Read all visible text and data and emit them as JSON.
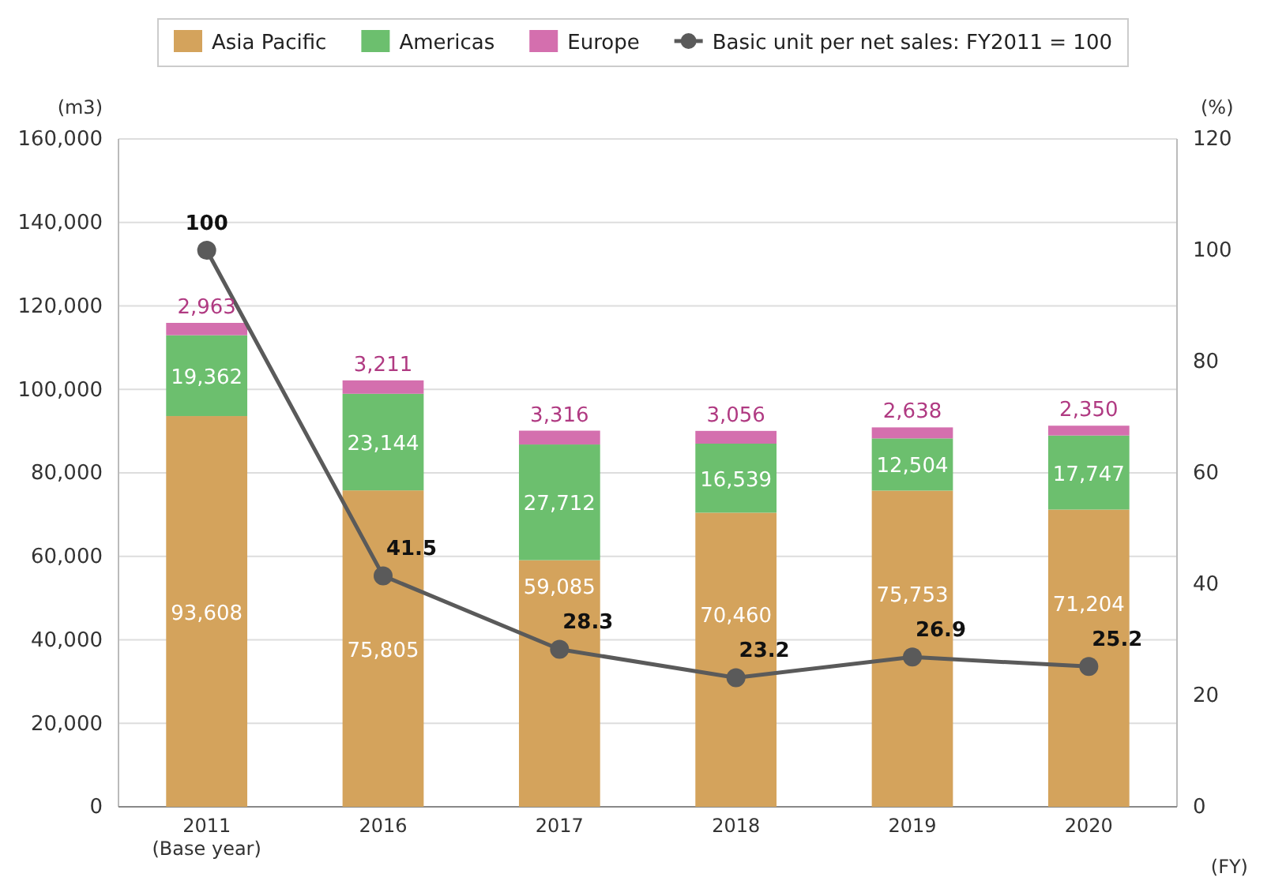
{
  "chart_data": {
    "type": "bar",
    "stacked": true,
    "categories": [
      "2011\n(Base year)",
      "2016",
      "2017",
      "2018",
      "2019",
      "2020"
    ],
    "series": [
      {
        "name": "Asia Pacific",
        "color": "#d4a35c",
        "values": [
          93608,
          75805,
          59085,
          70460,
          75753,
          71204
        ],
        "value_labels": [
          "93,608",
          "75,805",
          "59,085",
          "70,460",
          "75,753",
          "71,204"
        ]
      },
      {
        "name": "Americas",
        "color": "#6cbf6e",
        "values": [
          19362,
          23144,
          27712,
          16539,
          12504,
          17747
        ],
        "value_labels": [
          "19,362",
          "23,144",
          "27,712",
          "16,539",
          "12,504",
          "17,747"
        ]
      },
      {
        "name": "Europe",
        "color": "#d46fae",
        "values": [
          2963,
          3211,
          3316,
          3056,
          2638,
          2350
        ],
        "value_labels": [
          "2,963",
          "3,211",
          "3,316",
          "3,056",
          "2,638",
          "2,350"
        ]
      },
      {
        "name": "Basic unit per net sales: FY2011 = 100",
        "type": "line",
        "axis": "y2",
        "color": "#5a5a5a",
        "values": [
          100,
          41.5,
          28.3,
          23.2,
          26.9,
          25.2
        ]
      }
    ],
    "ylabel": "(m3)",
    "y2label": "(%)",
    "xlabel": "(FY)",
    "ylim": [
      0,
      160000
    ],
    "yticks": [
      {
        "value": 0,
        "label": "0"
      },
      {
        "value": 20000,
        "label": "20,000"
      },
      {
        "value": 40000,
        "label": "40,000"
      },
      {
        "value": 60000,
        "label": "60,000"
      },
      {
        "value": 80000,
        "label": "80,000"
      },
      {
        "value": 100000,
        "label": "100,000"
      },
      {
        "value": 120000,
        "label": "120,000"
      },
      {
        "value": 140000,
        "label": "140,000"
      },
      {
        "value": 160000,
        "label": "160,000"
      }
    ],
    "y2lim": [
      0,
      120
    ],
    "y2ticks": [
      0,
      20,
      40,
      60,
      80,
      100,
      120
    ],
    "grid": "y",
    "legend": "top",
    "marker": "circle",
    "data_labels": true
  }
}
